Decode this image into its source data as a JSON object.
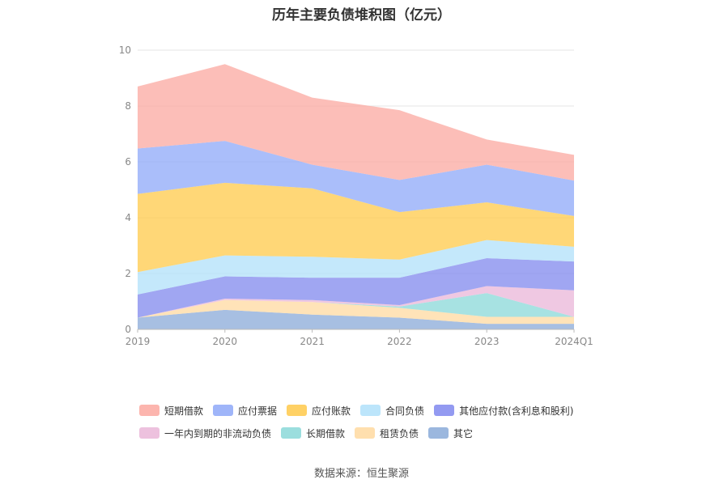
{
  "chart_data": {
    "type": "area",
    "stacked": true,
    "title": "历年主要负债堆积图（亿元）",
    "categories": [
      "2019",
      "2020",
      "2021",
      "2022",
      "2023",
      "2024Q1"
    ],
    "ylim": [
      0,
      10
    ],
    "yticks": [
      "0",
      "2",
      "4",
      "6",
      "8",
      "10"
    ],
    "grid": true,
    "legend_position": "bottom",
    "series": [
      {
        "name": "其它",
        "color": "#8aaad8",
        "values": [
          0.42,
          0.7,
          0.53,
          0.42,
          0.2,
          0.2
        ]
      },
      {
        "name": "租赁负债",
        "color": "#ffd9a0",
        "values": [
          0.0,
          0.35,
          0.45,
          0.35,
          0.25,
          0.25
        ]
      },
      {
        "name": "长期借款",
        "color": "#8ad8d8",
        "values": [
          0.0,
          0.0,
          0.0,
          0.05,
          0.85,
          0.0
        ]
      },
      {
        "name": "一年内到期的非流动负债",
        "color": "#eab6d8",
        "values": [
          0.0,
          0.05,
          0.07,
          0.05,
          0.25,
          0.95
        ]
      },
      {
        "name": "其他应付款(含利息和股利)",
        "color": "#8088ee",
        "values": [
          0.83,
          0.8,
          0.8,
          0.98,
          1.0,
          1.03
        ]
      },
      {
        "name": "合同负债",
        "color": "#b0e0fa",
        "values": [
          0.8,
          0.75,
          0.75,
          0.65,
          0.65,
          0.53
        ]
      },
      {
        "name": "应付账款",
        "color": "#ffc94a",
        "values": [
          2.8,
          2.6,
          2.45,
          1.7,
          1.35,
          1.1
        ]
      },
      {
        "name": "应付票据",
        "color": "#8ea8f8",
        "values": [
          1.63,
          1.5,
          0.85,
          1.15,
          1.35,
          1.27
        ]
      },
      {
        "name": "短期借款",
        "color": "#fba8a0",
        "values": [
          2.22,
          2.75,
          2.4,
          2.5,
          0.9,
          0.92
        ]
      }
    ],
    "legend_rows": [
      [
        "短期借款",
        "应付票据",
        "应付账款",
        "合同负债",
        "其他应付款(含利息和股利)"
      ],
      [
        "一年内到期的非流动负债",
        "长期借款",
        "租赁负债",
        "其它"
      ]
    ]
  },
  "source": "数据来源：恒生聚源"
}
